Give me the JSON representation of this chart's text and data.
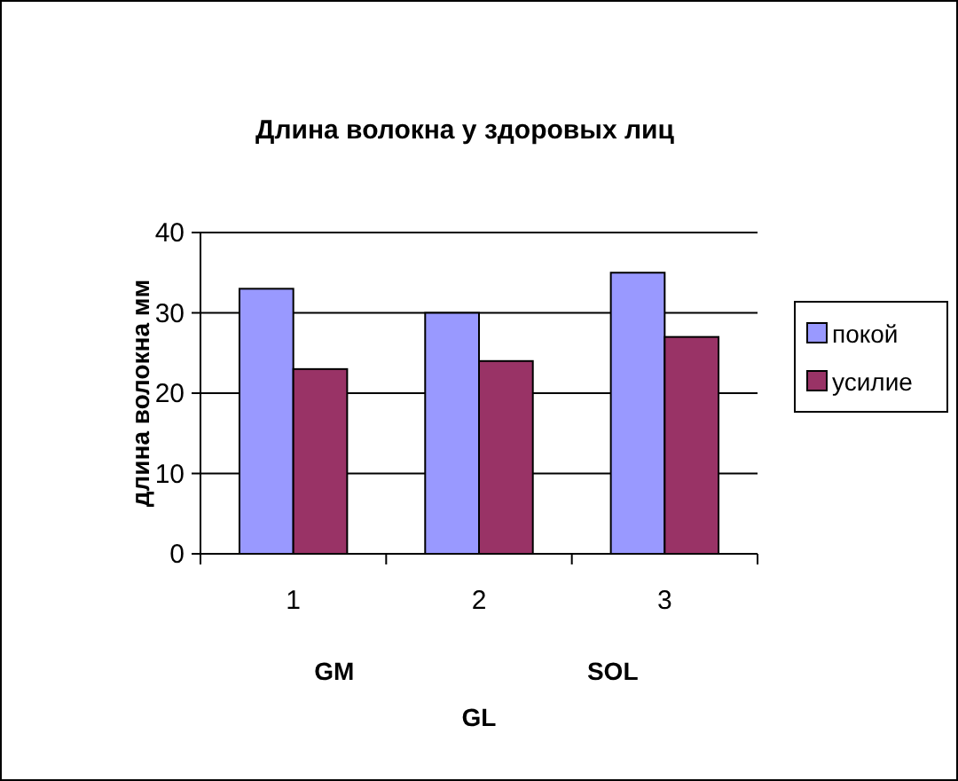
{
  "chart_data": {
    "type": "bar",
    "title": "Длина волокна у здоровых лиц",
    "ylabel": "длина волокна мм",
    "xlabel": "GL",
    "categories": [
      "1",
      "2",
      "3"
    ],
    "series": [
      {
        "name": "покой",
        "color": "#9999ff",
        "values": [
          33,
          30,
          35
        ]
      },
      {
        "name": "усилие",
        "color": "#993366",
        "values": [
          23,
          24,
          27
        ]
      }
    ],
    "ylim": [
      0,
      40
    ],
    "yticks": [
      0,
      10,
      20,
      30,
      40
    ],
    "grid": "y",
    "legend": "right",
    "annotations": [
      "GM",
      "SOL"
    ]
  }
}
